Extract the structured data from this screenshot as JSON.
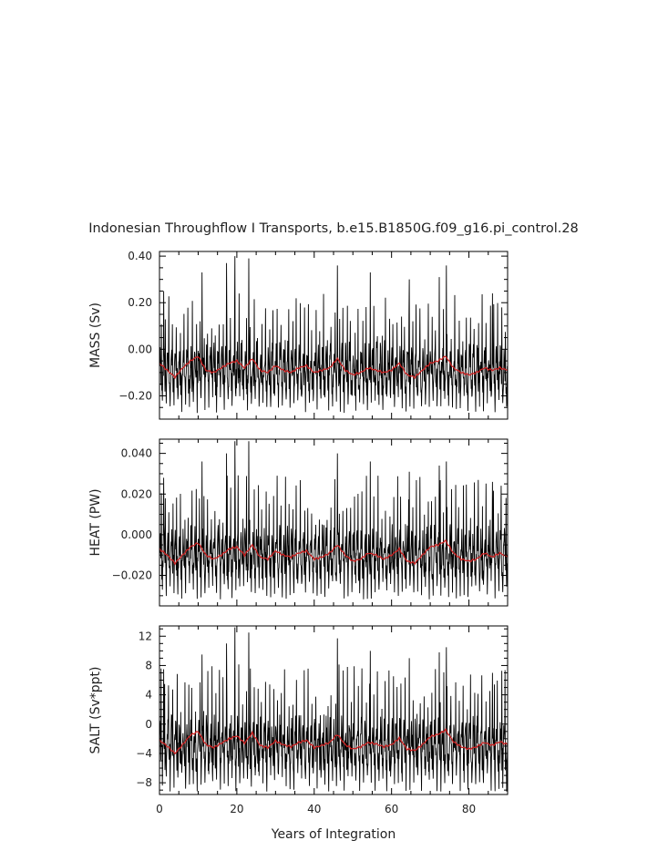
{
  "title": "Indonesian Throughflow I Transports, b.e15.B1850G.f09_g16.pi_control.28",
  "xlabel": "Years of Integration",
  "colors": {
    "raw": "#000000",
    "smoothed": "#cc2222"
  },
  "chart_data": [
    {
      "type": "line",
      "ylabel": "MASS (Sv)",
      "xlim": [
        0,
        90
      ],
      "ylim": [
        -0.3,
        0.42
      ],
      "xticks": [
        0,
        20,
        40,
        60,
        80
      ],
      "yticks": [
        -0.2,
        0.0,
        0.2,
        0.4
      ],
      "ytick_labels": [
        "−0.20",
        "0.00",
        "0.20",
        "0.40"
      ],
      "series": [
        {
          "style": "monthly",
          "color": "#000000",
          "base": -0.1,
          "amp": 0.11,
          "spikes": [
            [
              1.1,
              0.25
            ],
            [
              11,
              0.33
            ],
            [
              17.3,
              0.37
            ],
            [
              19.5,
              0.4
            ],
            [
              23.1,
              0.39
            ],
            [
              46,
              0.36
            ],
            [
              54.5,
              0.33
            ],
            [
              64.6,
              0.3
            ],
            [
              72.3,
              0.31
            ],
            [
              74.2,
              0.36
            ],
            [
              86.1,
              0.24
            ]
          ],
          "min": -0.29
        },
        {
          "style": "smoothed",
          "color": "#cc2222",
          "x": [
            0,
            2,
            4,
            6,
            8,
            10,
            12,
            14,
            16,
            18,
            20,
            22,
            24,
            26,
            28,
            30,
            32,
            34,
            36,
            38,
            40,
            42,
            44,
            46,
            48,
            50,
            52,
            54,
            56,
            58,
            60,
            62,
            64,
            66,
            68,
            70,
            72,
            74,
            76,
            78,
            80,
            82,
            84,
            86,
            88,
            90
          ],
          "y": [
            -0.06,
            -0.09,
            -0.12,
            -0.08,
            -0.05,
            -0.03,
            -0.09,
            -0.1,
            -0.08,
            -0.06,
            -0.05,
            -0.08,
            -0.04,
            -0.09,
            -0.1,
            -0.07,
            -0.09,
            -0.1,
            -0.08,
            -0.07,
            -0.1,
            -0.09,
            -0.08,
            -0.04,
            -0.09,
            -0.11,
            -0.1,
            -0.08,
            -0.09,
            -0.1,
            -0.09,
            -0.06,
            -0.11,
            -0.12,
            -0.09,
            -0.06,
            -0.05,
            -0.03,
            -0.08,
            -0.1,
            -0.11,
            -0.1,
            -0.08,
            -0.09,
            -0.08,
            -0.09
          ]
        }
      ]
    },
    {
      "type": "line",
      "ylabel": "HEAT (PW)",
      "xlim": [
        0,
        90
      ],
      "ylim": [
        -0.035,
        0.047
      ],
      "xticks": [
        0,
        20,
        40,
        60,
        80
      ],
      "yticks": [
        -0.02,
        0.0,
        0.02,
        0.04
      ],
      "ytick_labels": [
        "−0.020",
        "0.000",
        "0.020",
        "0.040"
      ],
      "series": [
        {
          "style": "monthly",
          "color": "#000000",
          "base": -0.011,
          "amp": 0.013,
          "spikes": [
            [
              1.1,
              0.028
            ],
            [
              11,
              0.036
            ],
            [
              17.3,
              0.04
            ],
            [
              19.5,
              0.046
            ],
            [
              23.1,
              0.046
            ],
            [
              46,
              0.04
            ],
            [
              54.5,
              0.036
            ],
            [
              64.6,
              0.031
            ],
            [
              72.3,
              0.034
            ],
            [
              74.2,
              0.036
            ],
            [
              86.1,
              0.026
            ]
          ],
          "min": -0.034
        },
        {
          "style": "smoothed",
          "color": "#cc2222",
          "x": [
            0,
            2,
            4,
            6,
            8,
            10,
            12,
            14,
            16,
            18,
            20,
            22,
            24,
            26,
            28,
            30,
            32,
            34,
            36,
            38,
            40,
            42,
            44,
            46,
            48,
            50,
            52,
            54,
            56,
            58,
            60,
            62,
            64,
            66,
            68,
            70,
            72,
            74,
            76,
            78,
            80,
            82,
            84,
            86,
            88,
            90
          ],
          "y": [
            -0.007,
            -0.01,
            -0.014,
            -0.01,
            -0.006,
            -0.004,
            -0.01,
            -0.012,
            -0.01,
            -0.007,
            -0.006,
            -0.01,
            -0.005,
            -0.011,
            -0.012,
            -0.008,
            -0.01,
            -0.011,
            -0.009,
            -0.008,
            -0.012,
            -0.011,
            -0.009,
            -0.005,
            -0.01,
            -0.013,
            -0.012,
            -0.009,
            -0.01,
            -0.012,
            -0.01,
            -0.007,
            -0.013,
            -0.014,
            -0.01,
            -0.006,
            -0.005,
            -0.003,
            -0.009,
            -0.012,
            -0.013,
            -0.012,
            -0.009,
            -0.011,
            -0.009,
            -0.011
          ]
        }
      ]
    },
    {
      "type": "line",
      "ylabel": "SALT (Sv*ppt)",
      "xlim": [
        0,
        90
      ],
      "ylim": [
        -9.6,
        13.4
      ],
      "xticks": [
        0,
        20,
        40,
        60,
        80
      ],
      "yticks": [
        -8,
        -4,
        0,
        4,
        8,
        12
      ],
      "ytick_labels": [
        "−8",
        "−4",
        "0",
        "4",
        "8",
        "12"
      ],
      "series": [
        {
          "style": "monthly",
          "color": "#000000",
          "base": -3.3,
          "amp": 3.7,
          "spikes": [
            [
              1.1,
              7.5
            ],
            [
              11,
              9.5
            ],
            [
              17.3,
              11.0
            ],
            [
              19.5,
              13.2
            ],
            [
              23.1,
              12.5
            ],
            [
              46,
              11.7
            ],
            [
              54.5,
              10.0
            ],
            [
              64.6,
              9.0
            ],
            [
              72.3,
              9.8
            ],
            [
              74.2,
              10.5
            ],
            [
              86.1,
              7.0
            ]
          ],
          "min": -9.2
        },
        {
          "style": "smoothed",
          "color": "#cc2222",
          "x": [
            0,
            2,
            4,
            6,
            8,
            10,
            12,
            14,
            16,
            18,
            20,
            22,
            24,
            26,
            28,
            30,
            32,
            34,
            36,
            38,
            40,
            42,
            44,
            46,
            48,
            50,
            52,
            54,
            56,
            58,
            60,
            62,
            64,
            66,
            68,
            70,
            72,
            74,
            76,
            78,
            80,
            82,
            84,
            86,
            88,
            90
          ],
          "y": [
            -2.2,
            -3.0,
            -4.0,
            -2.8,
            -1.5,
            -1.0,
            -2.8,
            -3.2,
            -2.6,
            -2.0,
            -1.6,
            -2.6,
            -1.2,
            -2.9,
            -3.2,
            -2.3,
            -2.8,
            -3.1,
            -2.5,
            -2.2,
            -3.2,
            -2.9,
            -2.5,
            -1.4,
            -2.8,
            -3.4,
            -3.1,
            -2.5,
            -2.7,
            -3.1,
            -2.8,
            -1.9,
            -3.4,
            -3.6,
            -2.8,
            -1.7,
            -1.4,
            -0.8,
            -2.4,
            -3.1,
            -3.4,
            -3.1,
            -2.5,
            -2.9,
            -2.4,
            -2.8
          ]
        }
      ]
    }
  ]
}
